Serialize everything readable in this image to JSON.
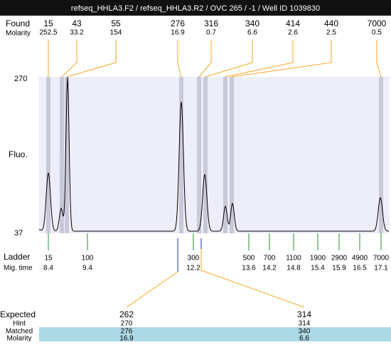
{
  "header": {
    "title": "refseq_HHLA3.F2 / refseq_HHLA3.R2 / OVC 265 / -1 / Well ID 1039830"
  },
  "found": {
    "label": "Found",
    "sub_label": "Molarity",
    "peaks": [
      {
        "size": 15,
        "molarity": 252.5
      },
      {
        "size": 43,
        "molarity": 33.2
      },
      {
        "size": 55,
        "molarity": 154
      },
      {
        "size": 276,
        "molarity": 16.9
      },
      {
        "size": 316,
        "molarity": 0.7
      },
      {
        "size": 340,
        "molarity": 6.6
      },
      {
        "size": 414,
        "molarity": 2.6
      },
      {
        "size": 440,
        "molarity": 2.5
      },
      {
        "size": 7000,
        "molarity": 0.5
      }
    ]
  },
  "axis": {
    "label": "Fluo.",
    "top": 270,
    "bottom": 37
  },
  "ladder": {
    "label": "Ladder",
    "sub_label": "Mig. time",
    "bands": [
      {
        "size": 15,
        "time": 8.4
      },
      {
        "size": 100,
        "time": 9.4
      },
      {
        "size": 300,
        "time": 12.2
      },
      {
        "size": 500,
        "time": 13.6
      },
      {
        "size": 700,
        "time": 14.2
      },
      {
        "size": 1100,
        "time": 14.8
      },
      {
        "size": 1900,
        "time": 15.4
      },
      {
        "size": 2900,
        "time": 15.9
      },
      {
        "size": 4900,
        "time": 16.5
      },
      {
        "size": 7000,
        "time": 17.1
      }
    ]
  },
  "expected": {
    "label": "Expected",
    "row_labels": [
      "Hint",
      "Matched",
      "Molarity"
    ],
    "columns": [
      {
        "expected": 262,
        "hint": 270,
        "matched": 276,
        "molarity": 16.9
      },
      {
        "expected": 314,
        "hint": 314,
        "matched": 340,
        "molarity": 6.6
      }
    ]
  }
}
